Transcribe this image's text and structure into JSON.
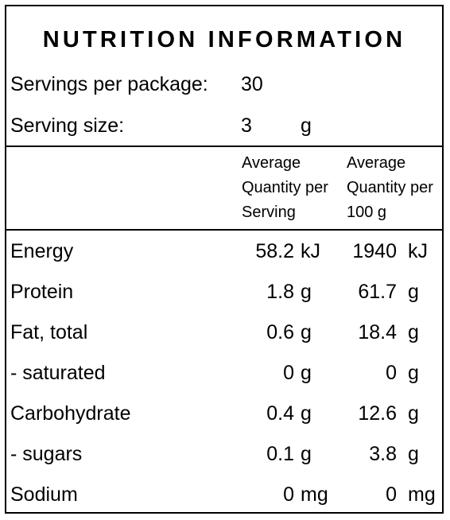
{
  "title": "NUTRITION INFORMATION",
  "servings_per_package": {
    "label": "Servings per package:",
    "value": "30"
  },
  "serving_size": {
    "label": "Serving size:",
    "value": "3",
    "unit": "g"
  },
  "column_headers": {
    "per_serving": [
      "Average",
      "Quantity per",
      "Serving"
    ],
    "per_100g": [
      "Average",
      "Quantity per",
      "100 g"
    ]
  },
  "rows": [
    {
      "name": "Energy",
      "serving_value": "58.2",
      "serving_unit": "kJ",
      "per100_value": "1940",
      "per100_unit": "kJ"
    },
    {
      "name": "Protein",
      "serving_value": "1.8",
      "serving_unit": "g",
      "per100_value": "61.7",
      "per100_unit": "g"
    },
    {
      "name": "Fat, total",
      "serving_value": "0.6",
      "serving_unit": "g",
      "per100_value": "18.4",
      "per100_unit": "g"
    },
    {
      "name": "- saturated",
      "serving_value": "0",
      "serving_unit": "g",
      "per100_value": "0",
      "per100_unit": "g"
    },
    {
      "name": "Carbohydrate",
      "serving_value": "0.4",
      "serving_unit": "g",
      "per100_value": "12.6",
      "per100_unit": "g"
    },
    {
      "name": "- sugars",
      "serving_value": "0.1",
      "serving_unit": "g",
      "per100_value": "3.8",
      "per100_unit": "g"
    },
    {
      "name": "Sodium",
      "serving_value": "0",
      "serving_unit": "mg",
      "per100_value": "0",
      "per100_unit": "mg"
    }
  ]
}
